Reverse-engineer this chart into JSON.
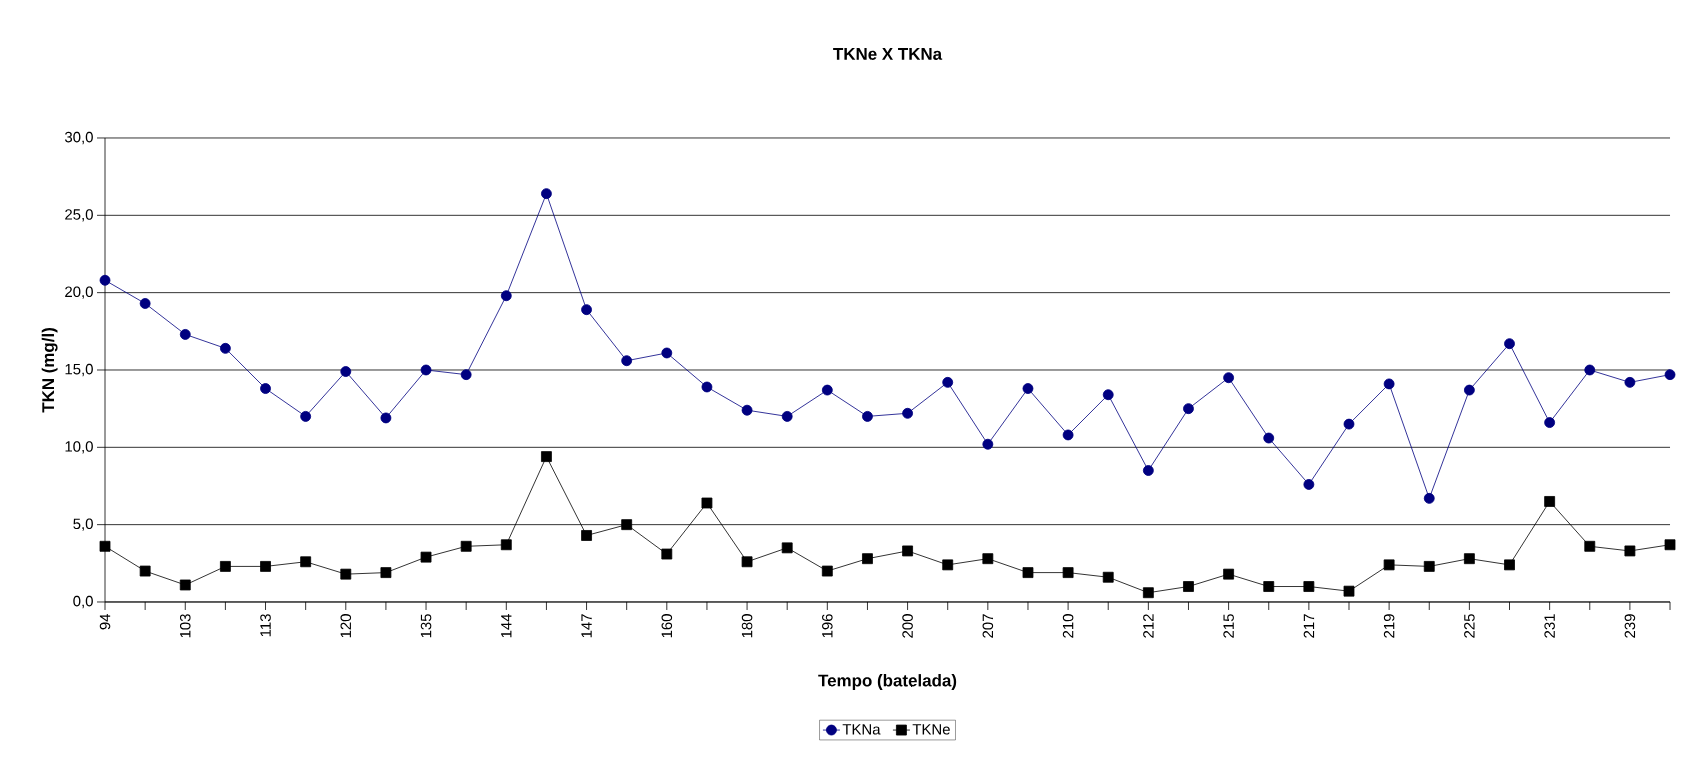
{
  "chart_data": {
    "type": "line",
    "title": "TKNe X TKNa",
    "xlabel": "Tempo (batelada)",
    "ylabel": "TKN (mg/l)",
    "categories": [
      "94",
      null,
      "103",
      null,
      "113",
      null,
      "120",
      null,
      "135",
      null,
      "144",
      null,
      "147",
      null,
      "160",
      null,
      "180",
      null,
      "196",
      null,
      "200",
      null,
      "207",
      null,
      "210",
      null,
      "212",
      null,
      "215",
      null,
      "217",
      null,
      "219",
      null,
      "225",
      null,
      "231",
      null,
      "239",
      null
    ],
    "series": [
      {
        "name": "TKNa",
        "color": "#000080",
        "marker": "circle",
        "values": [
          20.8,
          19.3,
          17.3,
          16.4,
          13.8,
          12.0,
          14.9,
          11.9,
          15.0,
          14.7,
          19.8,
          26.4,
          18.9,
          15.6,
          16.1,
          13.9,
          12.4,
          12.0,
          13.7,
          12.0,
          12.2,
          14.2,
          10.2,
          13.8,
          10.8,
          13.4,
          8.5,
          12.5,
          14.5,
          10.6,
          7.6,
          11.5,
          14.1,
          6.7,
          13.7,
          16.7,
          11.6,
          15.0,
          14.2,
          14.7
        ]
      },
      {
        "name": "TKNe",
        "color": "#000000",
        "marker": "square",
        "values": [
          3.6,
          2.0,
          1.1,
          2.3,
          2.3,
          2.6,
          1.8,
          1.9,
          2.9,
          3.6,
          3.7,
          9.4,
          4.3,
          5.0,
          3.1,
          6.4,
          2.6,
          3.5,
          2.0,
          2.8,
          3.3,
          2.4,
          2.8,
          1.9,
          1.9,
          1.6,
          0.6,
          1.0,
          1.8,
          1.0,
          1.0,
          0.7,
          2.4,
          2.3,
          2.8,
          2.4,
          6.5,
          3.6,
          3.3,
          3.7
        ]
      }
    ],
    "ylim": [
      0,
      30
    ],
    "yticks": [
      {
        "value": 0,
        "label": "0,0"
      },
      {
        "value": 5,
        "label": "5,0"
      },
      {
        "value": 10,
        "label": "10,0"
      },
      {
        "value": 15,
        "label": "15,0"
      },
      {
        "value": 20,
        "label": "20,0"
      },
      {
        "value": 25,
        "label": "25,0"
      },
      {
        "value": 30,
        "label": "30,0"
      }
    ],
    "grid": "y",
    "legend": "bottom",
    "line_style": "solid"
  }
}
